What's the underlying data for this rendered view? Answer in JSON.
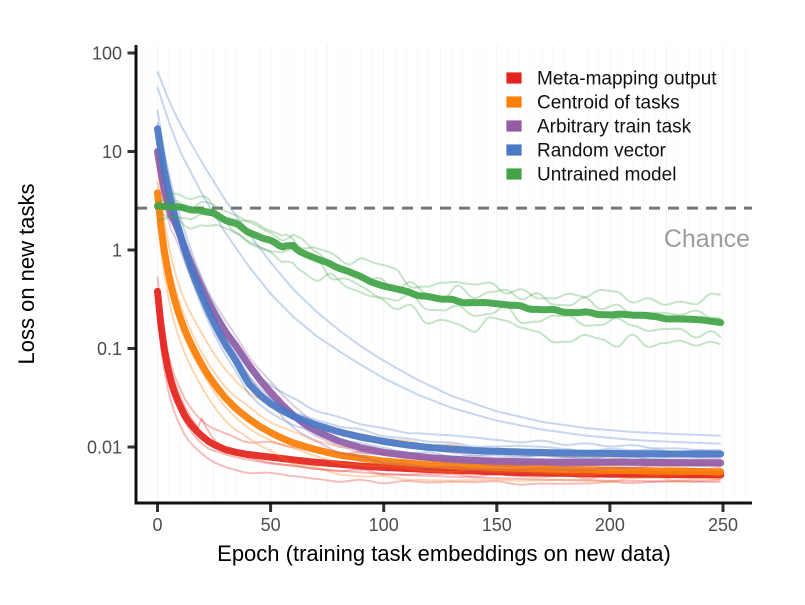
{
  "chart_data": {
    "type": "line",
    "title": "",
    "xlabel": "Epoch (training task embeddings on new data)",
    "ylabel": "Loss on new tasks",
    "x_ticks": [
      0,
      50,
      100,
      150,
      200,
      250
    ],
    "xlim": [
      -10,
      263
    ],
    "y_scale": "log10",
    "y_ticks": [
      {
        "value": 100,
        "label": "100"
      },
      {
        "value": 10,
        "label": "10"
      },
      {
        "value": 1,
        "label": "1"
      },
      {
        "value": 0.1,
        "label": "0.1"
      },
      {
        "value": 0.01,
        "label": "0.01"
      }
    ],
    "ylim": [
      0.0027,
      118
    ],
    "grid": "faint-vertical",
    "legend_position": "top-right",
    "chance_line": {
      "label": "Chance",
      "value": 2.66,
      "style": "dashed",
      "color": "#777777"
    },
    "series": [
      {
        "name": "Meta-mapping output",
        "color": "#e3231d",
        "mean_points": [
          [
            0,
            0.38
          ],
          [
            1,
            0.22
          ],
          [
            2,
            0.14
          ],
          [
            3,
            0.098
          ],
          [
            4,
            0.072
          ],
          [
            5,
            0.057
          ],
          [
            6,
            0.046
          ],
          [
            8,
            0.033
          ],
          [
            10,
            0.026
          ],
          [
            12,
            0.021
          ],
          [
            14,
            0.0178
          ],
          [
            16,
            0.0157
          ],
          [
            18,
            0.014
          ],
          [
            20,
            0.0127
          ],
          [
            23,
            0.0112
          ],
          [
            26,
            0.0103
          ],
          [
            30,
            0.0094
          ],
          [
            35,
            0.0088
          ],
          [
            40,
            0.0084
          ],
          [
            50,
            0.0079
          ],
          [
            60,
            0.0074
          ],
          [
            70,
            0.007
          ],
          [
            80,
            0.0067
          ],
          [
            90,
            0.0064
          ],
          [
            100,
            0.0062
          ],
          [
            120,
            0.0059
          ],
          [
            140,
            0.0057
          ],
          [
            160,
            0.0055
          ],
          [
            180,
            0.0054
          ],
          [
            200,
            0.0053
          ],
          [
            225,
            0.00525
          ],
          [
            250,
            0.0052
          ]
        ],
        "runs": {
          "mults": [
            0.62,
            0.85,
            1.45
          ],
          "seeds": [
            3,
            5,
            7
          ],
          "noise_amp": 0.05,
          "noise_step": 10,
          "taper": [
            1,
            0.25
          ]
        },
        "extra_runs": [
          [
            [
              0,
              0.3
            ],
            [
              2,
              0.135
            ],
            [
              4,
              0.082
            ],
            [
              6,
              0.057
            ],
            [
              9,
              0.037
            ],
            [
              12,
              0.026
            ],
            [
              15,
              0.0195
            ],
            [
              18,
              0.0158
            ],
            [
              20,
              0.021
            ],
            [
              21,
              0.0165
            ],
            [
              25,
              0.0118
            ],
            [
              30,
              0.0095
            ],
            [
              40,
              0.0078
            ],
            [
              50,
              0.0069
            ],
            [
              70,
              0.006
            ],
            [
              100,
              0.0053
            ],
            [
              140,
              0.0049
            ],
            [
              180,
              0.0046
            ],
            [
              220,
              0.0045
            ],
            [
              250,
              0.0044
            ]
          ]
        ]
      },
      {
        "name": "Centroid of tasks",
        "color": "#fb7e08",
        "mean_points": [
          [
            0,
            3.8
          ],
          [
            1,
            2.2
          ],
          [
            2,
            1.4
          ],
          [
            3,
            0.98
          ],
          [
            4,
            0.72
          ],
          [
            5,
            0.55
          ],
          [
            6,
            0.43
          ],
          [
            8,
            0.285
          ],
          [
            10,
            0.205
          ],
          [
            12,
            0.156
          ],
          [
            14,
            0.122
          ],
          [
            16,
            0.098
          ],
          [
            18,
            0.08
          ],
          [
            20,
            0.066
          ],
          [
            23,
            0.051
          ],
          [
            26,
            0.041
          ],
          [
            30,
            0.0315
          ],
          [
            35,
            0.0242
          ],
          [
            40,
            0.0196
          ],
          [
            45,
            0.0163
          ],
          [
            50,
            0.014
          ],
          [
            55,
            0.0123
          ],
          [
            60,
            0.011
          ],
          [
            70,
            0.0094
          ],
          [
            80,
            0.0083
          ],
          [
            90,
            0.0077
          ],
          [
            100,
            0.0072
          ],
          [
            120,
            0.0066
          ],
          [
            140,
            0.0063
          ],
          [
            160,
            0.0061
          ],
          [
            180,
            0.0059
          ],
          [
            200,
            0.0058
          ],
          [
            225,
            0.0057
          ],
          [
            250,
            0.0056
          ]
        ],
        "runs": {
          "mults": [
            0.58,
            0.82,
            1.35,
            2.1
          ],
          "seeds": [
            11,
            13,
            17,
            19
          ],
          "noise_amp": 0.05,
          "noise_step": 10,
          "taper": [
            1,
            0.25
          ]
        },
        "extra_runs": []
      },
      {
        "name": "Arbitrary train task",
        "color": "#955ba5",
        "mean_points": [
          [
            0,
            10
          ],
          [
            1,
            7.2
          ],
          [
            2,
            5.3
          ],
          [
            3,
            4.1
          ],
          [
            4,
            3.3
          ],
          [
            5,
            2.7
          ],
          [
            6,
            2.25
          ],
          [
            8,
            1.85
          ],
          [
            10,
            1.4
          ],
          [
            12,
            1.05
          ],
          [
            14,
            0.8
          ],
          [
            16,
            0.62
          ],
          [
            18,
            0.49
          ],
          [
            20,
            0.39
          ],
          [
            23,
            0.28
          ],
          [
            26,
            0.21
          ],
          [
            30,
            0.148
          ],
          [
            35,
            0.104
          ],
          [
            40,
            0.07
          ],
          [
            45,
            0.049
          ],
          [
            50,
            0.036
          ],
          [
            55,
            0.027
          ],
          [
            60,
            0.021
          ],
          [
            65,
            0.0172
          ],
          [
            70,
            0.0146
          ],
          [
            80,
            0.0115
          ],
          [
            90,
            0.0098
          ],
          [
            100,
            0.0088
          ],
          [
            120,
            0.0078
          ],
          [
            140,
            0.0073
          ],
          [
            160,
            0.0071
          ],
          [
            180,
            0.007
          ],
          [
            200,
            0.007
          ],
          [
            225,
            0.00695
          ],
          [
            250,
            0.0069
          ]
        ],
        "runs": {
          "mults": [
            0.72,
            0.88,
            1.3
          ],
          "seeds": [
            23,
            29,
            31
          ],
          "noise_amp": 0.04,
          "noise_step": 10,
          "taper": [
            1,
            0.25
          ]
        },
        "extra_runs": []
      },
      {
        "name": "Random vector",
        "color": "#4a79c5",
        "mean_points": [
          [
            0,
            17
          ],
          [
            1,
            12
          ],
          [
            2,
            8.6
          ],
          [
            3,
            6.4
          ],
          [
            4,
            4.9
          ],
          [
            5,
            3.9
          ],
          [
            6,
            3.1
          ],
          [
            8,
            2.05
          ],
          [
            10,
            1.42
          ],
          [
            12,
            1.01
          ],
          [
            14,
            0.74
          ],
          [
            16,
            0.55
          ],
          [
            18,
            0.42
          ],
          [
            20,
            0.325
          ],
          [
            23,
            0.225
          ],
          [
            26,
            0.163
          ],
          [
            30,
            0.11
          ],
          [
            35,
            0.073
          ],
          [
            40,
            0.045
          ],
          [
            45,
            0.034
          ],
          [
            50,
            0.0275
          ],
          [
            55,
            0.0235
          ],
          [
            60,
            0.0205
          ],
          [
            65,
            0.0185
          ],
          [
            70,
            0.0168
          ],
          [
            80,
            0.0143
          ],
          [
            90,
            0.0126
          ],
          [
            100,
            0.0114
          ],
          [
            110,
            0.0105
          ],
          [
            120,
            0.0099
          ],
          [
            140,
            0.0092
          ],
          [
            160,
            0.0089
          ],
          [
            180,
            0.0087
          ],
          [
            200,
            0.0086
          ],
          [
            225,
            0.0085
          ],
          [
            250,
            0.0085
          ]
        ],
        "runs": {
          "mults": [
            0.8,
            1.2,
            1.6
          ],
          "seeds": [
            37,
            41,
            43
          ],
          "noise_amp": 0.05,
          "noise_step": 10,
          "taper": [
            1,
            0.25
          ]
        },
        "extra_runs": [
          [
            [
              0,
              65
            ],
            [
              5,
              33
            ],
            [
              10,
              19
            ],
            [
              20,
              7.5
            ],
            [
              30,
              3.2
            ],
            [
              40,
              1.5
            ],
            [
              50,
              0.75
            ],
            [
              60,
              0.4
            ],
            [
              70,
              0.24
            ],
            [
              80,
              0.155
            ],
            [
              90,
              0.105
            ],
            [
              100,
              0.075
            ],
            [
              115,
              0.048
            ],
            [
              130,
              0.033
            ],
            [
              150,
              0.023
            ],
            [
              170,
              0.018
            ],
            [
              190,
              0.0155
            ],
            [
              210,
              0.0142
            ],
            [
              230,
              0.0135
            ],
            [
              250,
              0.013
            ]
          ],
          [
            [
              0,
              45
            ],
            [
              5,
              20
            ],
            [
              10,
              10
            ],
            [
              20,
              3.6
            ],
            [
              30,
              1.5
            ],
            [
              40,
              0.7
            ],
            [
              50,
              0.36
            ],
            [
              60,
              0.21
            ],
            [
              70,
              0.135
            ],
            [
              80,
              0.095
            ],
            [
              90,
              0.068
            ],
            [
              100,
              0.05
            ],
            [
              115,
              0.034
            ],
            [
              130,
              0.025
            ],
            [
              150,
              0.0185
            ],
            [
              170,
              0.015
            ],
            [
              190,
              0.013
            ],
            [
              210,
              0.0118
            ],
            [
              230,
              0.0112
            ],
            [
              250,
              0.0108
            ]
          ]
        ]
      },
      {
        "name": "Untrained model",
        "color": "#42a447",
        "mean_points": [
          [
            0,
            2.85
          ],
          [
            3,
            2.8
          ],
          [
            6,
            2.75
          ],
          [
            9,
            2.78
          ],
          [
            12,
            2.7
          ],
          [
            15,
            2.62
          ],
          [
            18,
            2.55
          ],
          [
            21,
            2.42
          ],
          [
            24,
            2.35
          ],
          [
            27,
            2.2
          ],
          [
            30,
            2.05
          ],
          [
            33,
            1.9
          ],
          [
            36,
            1.78
          ],
          [
            40,
            1.55
          ],
          [
            44,
            1.42
          ],
          [
            48,
            1.28
          ],
          [
            52,
            1.18
          ],
          [
            55,
            1.08
          ],
          [
            57,
            1.12
          ],
          [
            60,
            1.12
          ],
          [
            62,
            1.0
          ],
          [
            66,
            0.9
          ],
          [
            70,
            0.82
          ],
          [
            75,
            0.74
          ],
          [
            80,
            0.66
          ],
          [
            85,
            0.6
          ],
          [
            90,
            0.53
          ],
          [
            95,
            0.47
          ],
          [
            100,
            0.44
          ],
          [
            105,
            0.4
          ],
          [
            110,
            0.375
          ],
          [
            115,
            0.355
          ],
          [
            120,
            0.34
          ],
          [
            125,
            0.325
          ],
          [
            130,
            0.315
          ],
          [
            135,
            0.3
          ],
          [
            140,
            0.295
          ],
          [
            145,
            0.285
          ],
          [
            150,
            0.28
          ],
          [
            160,
            0.265
          ],
          [
            170,
            0.25
          ],
          [
            180,
            0.24
          ],
          [
            190,
            0.23
          ],
          [
            200,
            0.222
          ],
          [
            210,
            0.215
          ],
          [
            220,
            0.208
          ],
          [
            230,
            0.2
          ],
          [
            240,
            0.195
          ],
          [
            250,
            0.185
          ]
        ],
        "mean_noise": {
          "amp": 0.03,
          "step": 5,
          "seed": 11
        },
        "runs": {
          "mults": [
            0.5,
            0.78,
            1.28,
            1.62
          ],
          "seeds": [
            47,
            53,
            59,
            61
          ],
          "noise_amp": 0.2,
          "noise_step": 7,
          "taper": [
            0.35,
            1.0
          ]
        },
        "extra_runs": []
      }
    ]
  }
}
